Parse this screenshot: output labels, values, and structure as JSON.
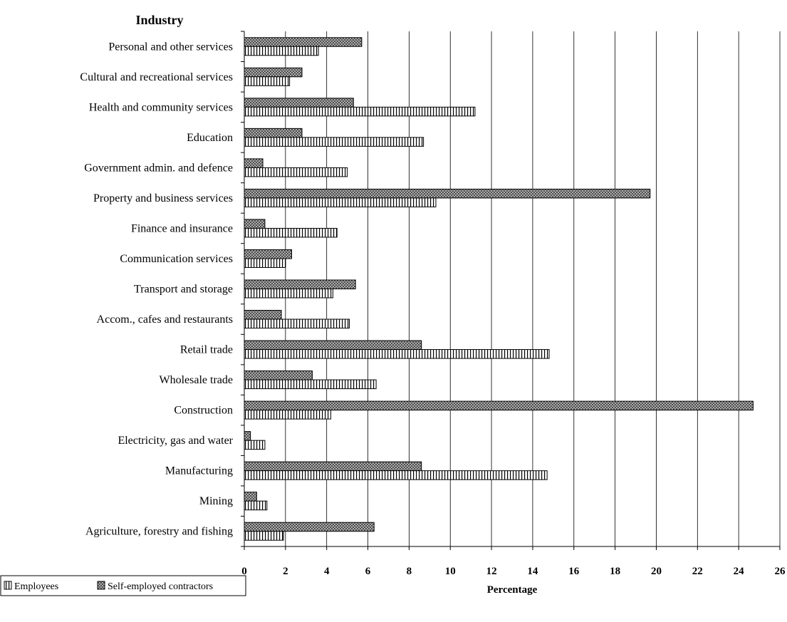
{
  "chart_data": {
    "type": "bar",
    "orientation": "horizontal",
    "title": "",
    "ylabel": "Industry",
    "xlabel": "Percentage",
    "xlim": [
      0,
      26
    ],
    "xticks": [
      0,
      2,
      4,
      6,
      8,
      10,
      12,
      14,
      16,
      18,
      20,
      22,
      24,
      26
    ],
    "grid": "vertical",
    "legend_position": "bottom-left",
    "categories": [
      "Personal and other services",
      "Cultural and recreational services",
      "Health and community services",
      "Education",
      "Government admin. and defence",
      "Property and business services",
      "Finance and insurance",
      "Communication services",
      "Transport and storage",
      "Accom., cafes and restaurants",
      "Retail trade",
      "Wholesale trade",
      "Construction",
      "Electricity, gas and water",
      "Manufacturing",
      "Mining",
      "Agriculture, forestry and fishing"
    ],
    "series": [
      {
        "name": "Employees",
        "pattern": "vertical-stripes",
        "values": [
          3.6,
          2.2,
          11.2,
          8.7,
          5.0,
          9.3,
          4.5,
          2.0,
          4.3,
          5.1,
          14.8,
          6.4,
          4.2,
          1.0,
          14.7,
          1.1,
          1.9
        ]
      },
      {
        "name": "Self-employed contractors",
        "pattern": "crosshatch",
        "values": [
          5.7,
          2.8,
          5.3,
          2.8,
          0.9,
          19.7,
          1.0,
          2.3,
          5.4,
          1.8,
          8.6,
          3.3,
          24.7,
          0.3,
          8.6,
          0.6,
          6.3
        ]
      }
    ]
  }
}
